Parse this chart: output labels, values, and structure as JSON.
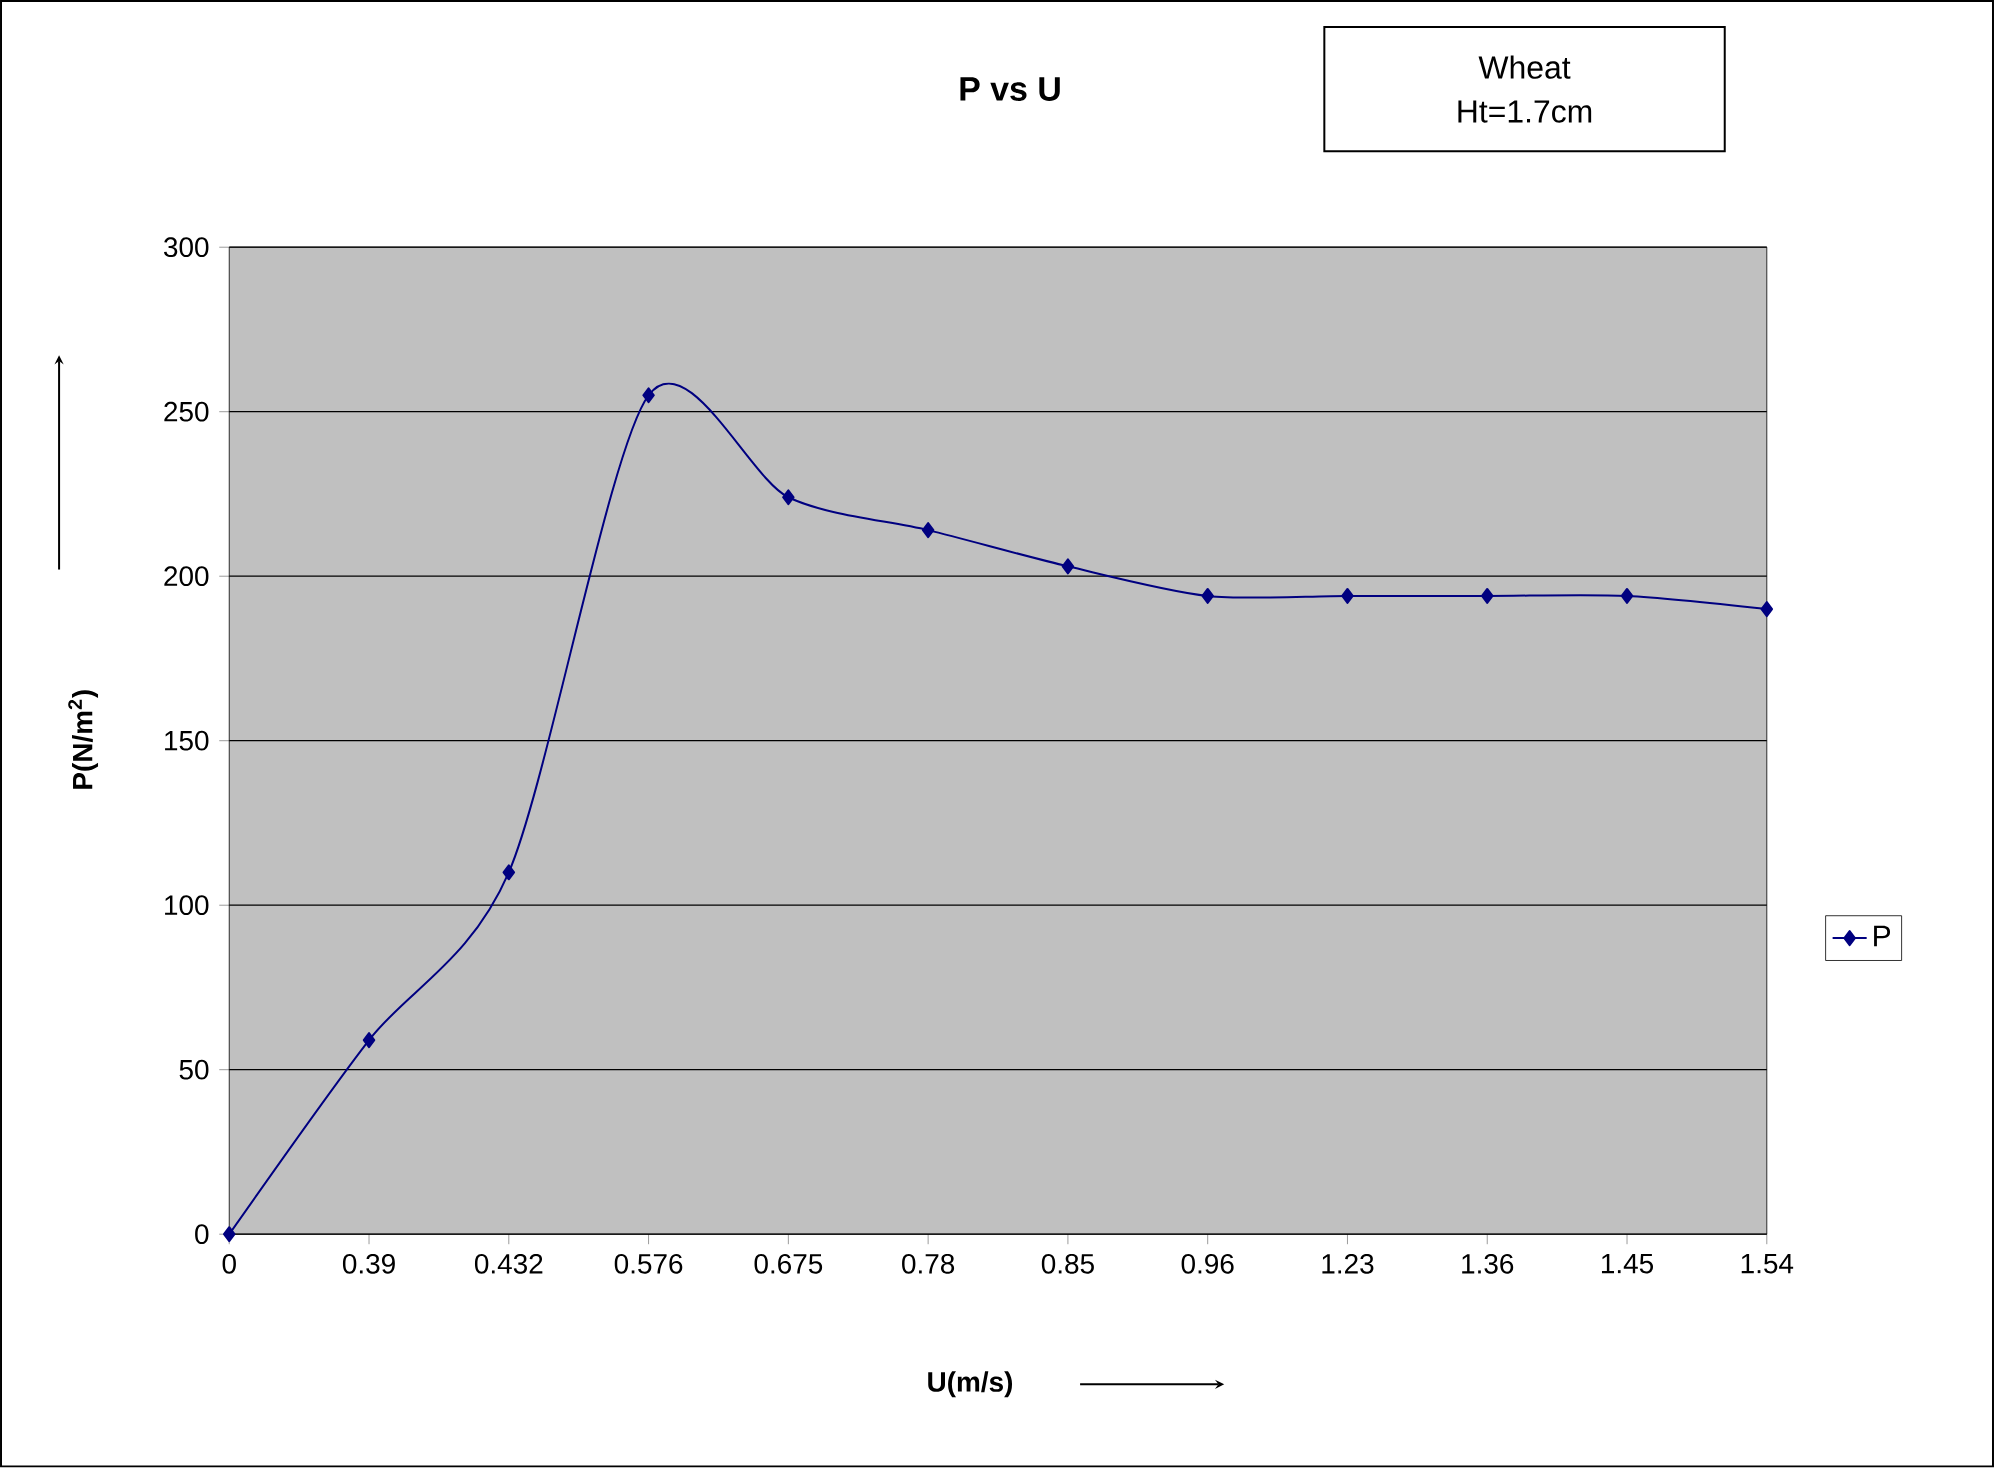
{
  "chart_data": {
    "type": "line",
    "title": "P vs U",
    "xlabel": "U(m/s)",
    "ylabel": "P(N/m$^{2}$)",
    "categories": [
      "0",
      "0.39",
      "0.432",
      "0.576",
      "0.675",
      "0.78",
      "0.85",
      "0.96",
      "1.23",
      "1.36",
      "1.45",
      "1.54"
    ],
    "series": [
      {
        "name": "P",
        "color": "#000080",
        "values": [
          0,
          59,
          110,
          255,
          224,
          214,
          203,
          194,
          194,
          194,
          194,
          190
        ]
      }
    ],
    "ylim": [
      0,
      300
    ],
    "yticks": [
      0,
      50,
      100,
      150,
      200,
      250,
      300
    ],
    "grid": "y",
    "legend": "right",
    "marker": "diamond",
    "line_style": "solid",
    "annotations": [
      "Wheat",
      "Ht=1.7cm"
    ]
  }
}
